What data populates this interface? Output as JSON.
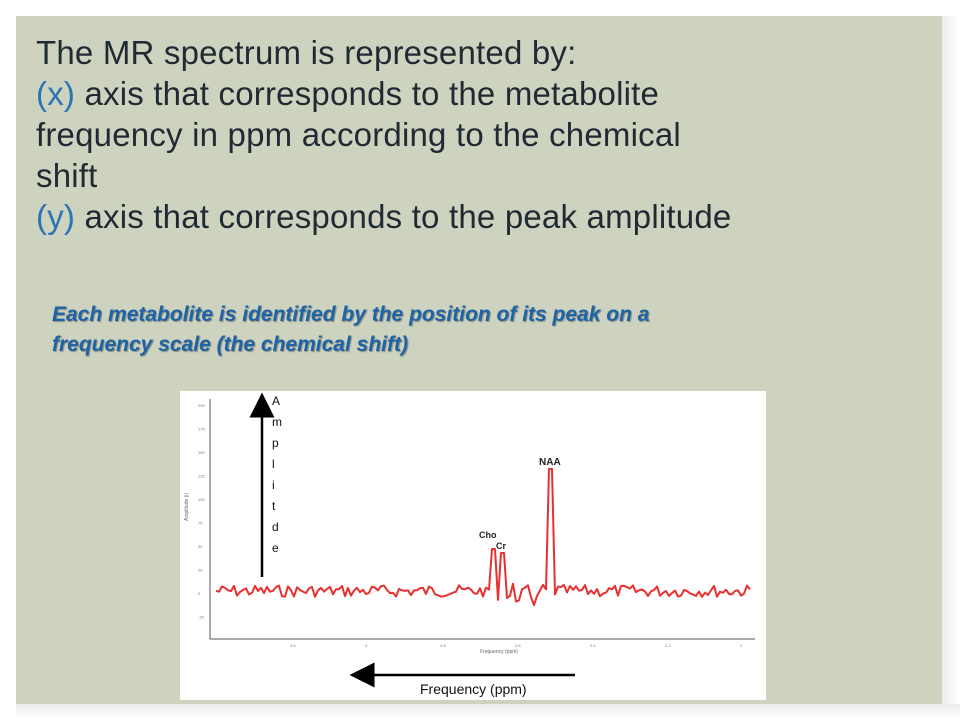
{
  "title": {
    "line1": "The MR spectrum is represented by:",
    "x_marker": "(x)",
    "x_text": " axis that corresponds to the metabolite",
    "line3": "frequency in ppm according to the chemical",
    "line4": "shift",
    "y_marker": "(y)",
    "y_text": " axis that corresponds to the peak amplitude"
  },
  "note": {
    "line1": "Each metabolite is identified by the position of its peak on a",
    "line2": "frequency scale (the chemical shift)"
  },
  "figure": {
    "amplitude_letters": [
      "A",
      "m",
      "p",
      "l",
      "i",
      "t",
      "d",
      "e"
    ],
    "peak_labels": {
      "naa": "NAA",
      "cho": "Cho",
      "cr": "Cr"
    },
    "x_arrow_label": "Frequency (ppm)",
    "plot_x_label": "Frequency (ppm)",
    "plot_y_label": "Amplitude (i)",
    "y_ticks": [
      "200",
      "175",
      "150",
      "125",
      "100",
      "75",
      "50",
      "25",
      "0",
      "-25"
    ],
    "x_ticks": [
      "3.6",
      "3",
      "2.8",
      "2.6",
      "2.4",
      "2.2",
      "2"
    ],
    "signal_color": "#e83030"
  }
}
